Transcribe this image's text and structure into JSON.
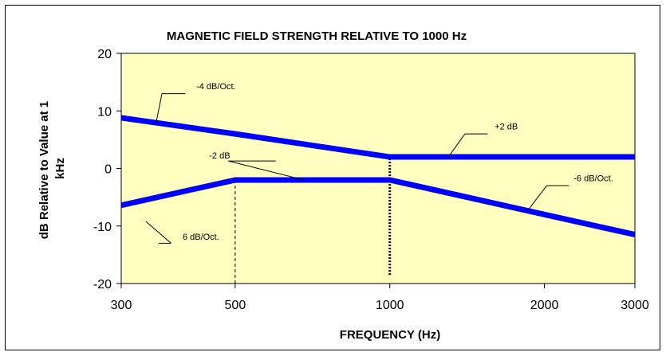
{
  "chart_data": {
    "type": "line",
    "title": "MAGNETIC FIELD STRENGTH RELATIVE TO 1000 Hz",
    "xlabel": "FREQUENCY (Hz)",
    "ylabel": "dB Relative to Value at 1 kHz",
    "x_scale": "log",
    "xlim": [
      300,
      3000
    ],
    "ylim": [
      -20,
      20
    ],
    "x_ticks": [
      300,
      500,
      1000,
      2000,
      3000
    ],
    "y_ticks": [
      20,
      10,
      0,
      -10,
      -20
    ],
    "grid": false,
    "plot_background": "#ffffc0",
    "line_color": "#0000ff",
    "series": [
      {
        "x": [
          300,
          500,
          1000,
          3000
        ],
        "y": [
          8.8,
          6,
          2,
          2
        ]
      },
      {
        "x": [
          300,
          500,
          1000,
          2000,
          3000
        ],
        "y": [
          -6.4,
          -2,
          -2,
          -8,
          -11.5
        ]
      }
    ],
    "reference_lines": [
      {
        "x": 500,
        "y_from": -20,
        "y_to": -2,
        "style": "dashed"
      },
      {
        "x": 1000,
        "y_from": -18.5,
        "y_to": 2.5,
        "style": "dotted-heavy"
      }
    ],
    "annotations": [
      {
        "text": "-4 dB/Oct.",
        "text_x": 420,
        "text_y": 13.8,
        "pointer": [
          [
            360,
            13
          ],
          [
            400,
            13
          ]
        ],
        "anchor": [
          350,
          7.5
        ]
      },
      {
        "text": "+2 dB",
        "text_x": 1600,
        "text_y": 6.8,
        "pointer": [
          [
            1400,
            6
          ],
          [
            1550,
            6
          ]
        ],
        "anchor": [
          1300,
          2
        ]
      },
      {
        "text": "-2 dB",
        "text_x": 445,
        "text_y": 1.7,
        "pointer": [
          [
            485,
            1.3
          ],
          [
            600,
            1.3
          ]
        ],
        "anchor": [
          680,
          -2
        ]
      },
      {
        "text": "-6 dB/Oct.",
        "text_x": 2280,
        "text_y": -2.2,
        "pointer": [
          [
            2020,
            -3
          ],
          [
            2230,
            -3
          ]
        ],
        "anchor": [
          1860,
          -7.2
        ]
      },
      {
        "text": "6 dB/Oct.",
        "text_x": 395,
        "text_y": -12.4,
        "pointer": [
          [
            375,
            -13
          ],
          [
            355,
            -13
          ]
        ],
        "anchor": [
          335,
          -9.2
        ]
      }
    ]
  }
}
